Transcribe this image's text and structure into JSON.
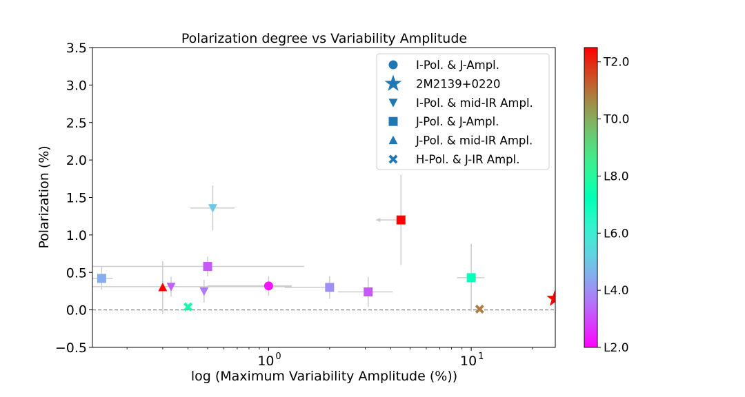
{
  "chart_data": {
    "type": "scatter",
    "title": "Polarization degree vs Variability Amplitude",
    "xlabel": "log (Maximum Variability Amplitude (%))",
    "ylabel": "Polarization (%)",
    "xscale": "log",
    "xlim": [
      0.135,
      26
    ],
    "ylim": [
      -0.5,
      3.5
    ],
    "x_ticks": [
      {
        "value": 1,
        "label": "10",
        "exp": "0"
      },
      {
        "value": 10,
        "label": "10",
        "exp": "1"
      }
    ],
    "y_ticks": [
      "−0.5",
      "0.0",
      "0.5",
      "1.0",
      "1.5",
      "2.0",
      "2.5",
      "3.0",
      "3.5"
    ],
    "reference_line": {
      "y": 0,
      "style": "dashed",
      "color": "#808080"
    },
    "colorbar": {
      "label_ticks": [
        "L2.0",
        "L4.0",
        "L6.0",
        "L8.0",
        "T0.0",
        "T2.0"
      ],
      "tick_spt": [
        2,
        4,
        6,
        8,
        10,
        12
      ],
      "range_spt": [
        2,
        12.5
      ],
      "colormap": "rainbow"
    },
    "legend": {
      "position": "upper right",
      "entries": [
        {
          "label": "I-Pol. & J-Ampl.",
          "marker": "circle"
        },
        {
          "label": "2M2139+0220",
          "marker": "star"
        },
        {
          "label": "I-Pol. & mid-IR Ampl.",
          "marker": "triangle-down"
        },
        {
          "label": "J-Pol. & J-Ampl.",
          "marker": "square"
        },
        {
          "label": "J-Pol. & mid-IR Ampl.",
          "marker": "triangle-up"
        },
        {
          "label": "H-Pol. & J-IR Ampl.",
          "marker": "x"
        }
      ],
      "marker_color": "#1f77b4"
    },
    "points": [
      {
        "x": 0.15,
        "y": 0.42,
        "marker": "square",
        "spt": 4.5,
        "yerr": 0.15,
        "xerr": [
          0.02,
          0.02
        ]
      },
      {
        "x": 0.3,
        "y": 0.3,
        "marker": "triangle-up",
        "spt": 12.5,
        "yerr": 0.35
      },
      {
        "x": 0.33,
        "y": 0.31,
        "marker": "triangle-down",
        "spt": 3.3,
        "yerr": 0.13,
        "xerr": [
          0.2,
          0.97
        ]
      },
      {
        "x": 0.4,
        "y": 0.04,
        "marker": "x",
        "spt": 7.5
      },
      {
        "x": 0.48,
        "y": 0.25,
        "marker": "triangle-down",
        "spt": 3.7,
        "yerr": 0.15
      },
      {
        "x": 0.5,
        "y": 0.58,
        "marker": "square",
        "spt": 3.2,
        "yerr": 0.13,
        "xerr": [
          0.37,
          1.0
        ]
      },
      {
        "x": 0.53,
        "y": 1.36,
        "marker": "triangle-down",
        "spt": 5.0,
        "yerr": 0.3,
        "xerr": [
          0.12,
          0.15
        ]
      },
      {
        "x": 1.0,
        "y": 0.32,
        "marker": "circle",
        "spt": 2.3,
        "yerr": 0.13,
        "xerr": [
          0.5,
          0.3
        ]
      },
      {
        "x": 2.0,
        "y": 0.3,
        "marker": "square",
        "spt": 4.0,
        "yerr": 0.15,
        "xerr": [
          0.8,
          0.0
        ]
      },
      {
        "x": 3.1,
        "y": 0.24,
        "marker": "square",
        "spt": 3.2,
        "yerr": 0.2,
        "xerr": [
          0.9,
          1.0
        ]
      },
      {
        "x": 4.5,
        "y": 1.2,
        "marker": "square",
        "spt": 12.5,
        "yerr": 0.6,
        "upper_limit_x": true
      },
      {
        "x": 10.0,
        "y": 0.43,
        "marker": "square",
        "spt": 7.0,
        "yerr": 0.45,
        "xerr": [
          1.5,
          1.6
        ]
      },
      {
        "x": 11.0,
        "y": 0.01,
        "marker": "x",
        "spt": 10.8
      },
      {
        "x": 25.9,
        "y": 0.15,
        "marker": "star",
        "spt": 12.5
      }
    ]
  }
}
